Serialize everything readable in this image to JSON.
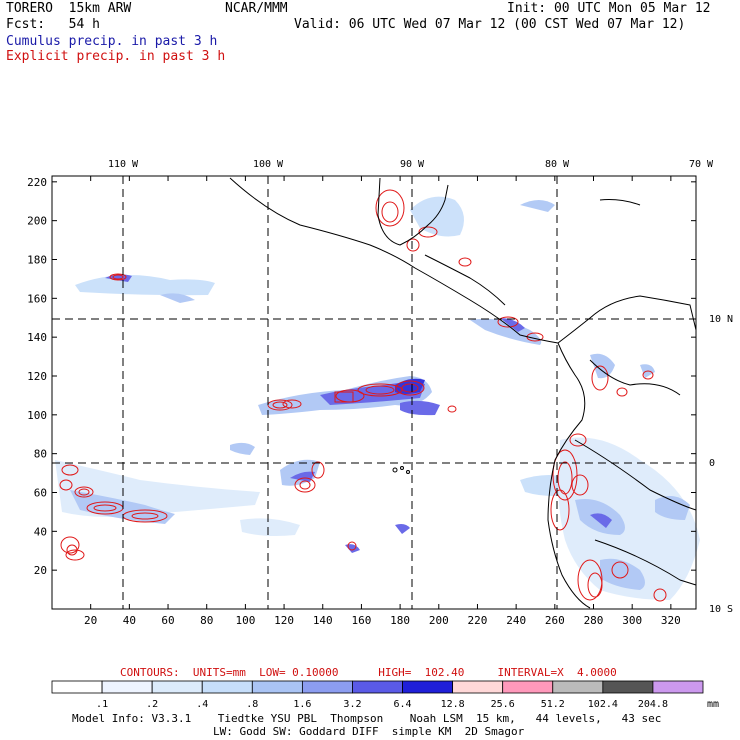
{
  "header": {
    "model": "TORERO  15km ARW",
    "org": "NCAR/MMM",
    "init": "Init: 00 UTC Mon 05 Mar 12",
    "fcst": "Fcst:   54 h",
    "valid": "Valid: 06 UTC Wed 07 Mar 12 (00 CST Wed 07 Mar 12)",
    "line1": "Cumulus precip. in past 3 h",
    "line2": "Explicit precip. in past 3 h",
    "line1_color": "#1a1aa8",
    "line2_color": "#d01010"
  },
  "map": {
    "lon_labels": [
      "110 W",
      "100 W",
      "90 W",
      "80 W",
      "70 W"
    ],
    "lat_labels": [
      "10 N",
      "0",
      "10 S"
    ],
    "x_ticks": [
      "20",
      "40",
      "60",
      "80",
      "100",
      "120",
      "140",
      "160",
      "180",
      "200",
      "220",
      "240",
      "260",
      "280",
      "300",
      "320"
    ],
    "y_ticks": [
      "20",
      "40",
      "60",
      "80",
      "100",
      "120",
      "140",
      "160",
      "180",
      "200",
      "220"
    ],
    "x_range": [
      0,
      333
    ],
    "y_range": [
      0,
      223
    ]
  },
  "contours": {
    "label": "CONTOURS:  UNITS=mm  LOW= 0.10000      HIGH=  102.40     INTERVAL=X  4.0000"
  },
  "colorbar": {
    "unit": "mm",
    "levels": [
      ".1",
      ".2",
      ".4",
      ".8",
      "1.6",
      "3.2",
      "6.4",
      "12.8",
      "25.6",
      "51.2",
      "102.4",
      "204.8"
    ],
    "colors": [
      "#ffffff",
      "#eef4ff",
      "#dcebfb",
      "#c6defa",
      "#aac4f4",
      "#8c9df0",
      "#5a5ae6",
      "#1f1fd8",
      "#ffd8d8",
      "#ff99bb",
      "#bbbbbb",
      "#555555",
      "#cc99ee"
    ]
  },
  "footer": {
    "line1": "Model Info: V3.3.1    Tiedtke YSU PBL  Thompson    Noah LSM  15 km,   44 levels,   43 sec",
    "line2": "LW: Godd SW: Goddard DIFF  simple KM  2D Smagor"
  },
  "colors": {
    "cumulus": "#3a44e0",
    "explicit": "#e01818"
  }
}
